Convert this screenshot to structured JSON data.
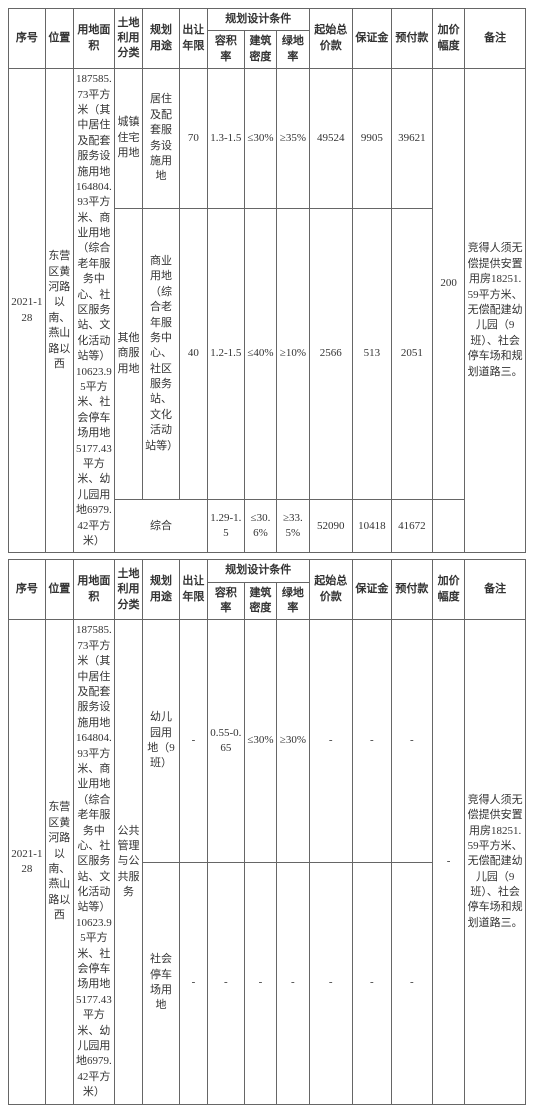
{
  "headers": {
    "seq": "序号",
    "loc": "位置",
    "area": "用地面积",
    "landClass": "土地利用分类",
    "planUse": "规划用途",
    "years": "出让年限",
    "designCond": "规划设计条件",
    "far": "容积率",
    "density": "建筑密度",
    "greenRate": "绿地率",
    "startPrice": "起始总价款",
    "deposit": "保证金",
    "prepay": "预付款",
    "incStep": "加价幅度",
    "remark": "备注"
  },
  "common": {
    "seq": "2021-128",
    "loc": "东营区黄河路以南、燕山路以西",
    "area": "187585.73平方米（其中居住及配套服务设施用地164804.93平方米、商业用地（综合老年服务中心、社区服务站、文化活动站等）10623.95平方米、社会停车场用地5177.43平方米、幼儿园用地6979.42平方米）",
    "remark": "竞得人须无偿提供安置用房18251.59平方米、无偿配建幼儿园（9班）、社会停车场和规划道路三。"
  },
  "t1": {
    "rows": [
      {
        "landClass": "城镇住宅用地",
        "planUse": "居住及配套服务设施用地",
        "years": "70",
        "far": "1.3-1.5",
        "density": "≤30%",
        "green": "≥35%",
        "start": "49524",
        "deposit": "9905",
        "prepay": "39621"
      },
      {
        "landClass": "其他商服用地",
        "planUse": "商业用地（综合老年服务中心、社区服务站、文化活动站等）",
        "years": "40",
        "far": "1.2-1.5",
        "density": "≤40%",
        "green": "≥10%",
        "start": "2566",
        "deposit": "513",
        "prepay": "2051"
      }
    ],
    "incStep": "200",
    "sum": {
      "label": "综合",
      "far": "1.29-1.5",
      "density": "≤30.6%",
      "green": "≥33.5%",
      "start": "52090",
      "deposit": "10418",
      "prepay": "41672"
    }
  },
  "t2": {
    "landClass": "公共管理与公共服务",
    "rows": [
      {
        "planUse": "幼儿园用地（9班）",
        "years": "-",
        "far": "0.55-0.65",
        "density": "≤30%",
        "green": "≥30%",
        "start": "-",
        "deposit": "-",
        "prepay": "-"
      },
      {
        "planUse": "社会停车场用地",
        "years": "-",
        "far": "-",
        "density": "-",
        "green": "-",
        "start": "-",
        "deposit": "-",
        "prepay": "-"
      }
    ],
    "incStep": "-"
  }
}
